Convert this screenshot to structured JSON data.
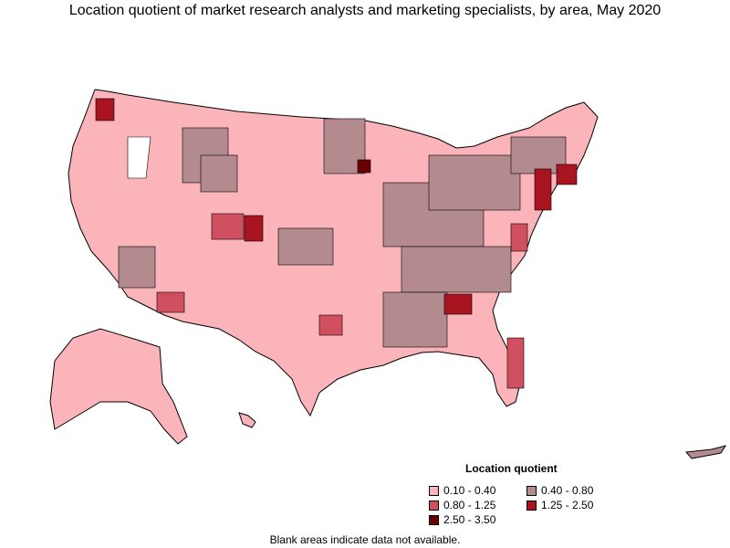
{
  "title": "Location quotient of market research analysts and marketing specialists, by area, May 2020",
  "legend": {
    "title": "Location quotient",
    "items": [
      {
        "label": "0.10 - 0.40",
        "color": "#fbb4b9"
      },
      {
        "label": "0.40 - 0.80",
        "color": "#b38a8e"
      },
      {
        "label": "0.80 - 1.25",
        "color": "#d1505f"
      },
      {
        "label": "1.25 - 2.50",
        "color": "#a8141f"
      },
      {
        "label": "2.50 - 3.50",
        "color": "#6b0000"
      }
    ]
  },
  "footnote": "Blank areas indicate data not available.",
  "regions": [
    {
      "name": "Contiguous United States",
      "class": "0.10 - 0.40"
    },
    {
      "name": "Alaska",
      "class": "0.10 - 0.40"
    },
    {
      "name": "Hawaii",
      "class": "0.10 - 0.40"
    },
    {
      "name": "Puerto Rico",
      "class": "0.40 - 0.80"
    }
  ]
}
